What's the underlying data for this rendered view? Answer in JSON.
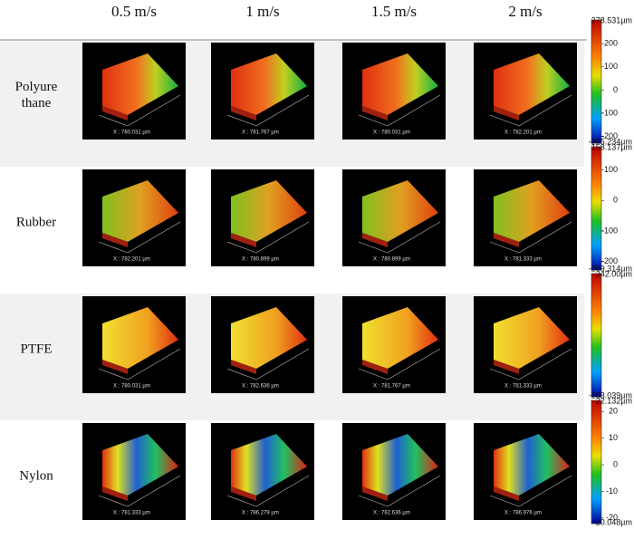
{
  "header": {
    "columns": [
      "0.5 m/s",
      "1 m/s",
      "1.5 m/s",
      "2 m/s"
    ]
  },
  "rows": [
    {
      "label": "Polyure thane",
      "images": [
        "X : 780.031 µm",
        "X : 781.767 µm",
        "X : 780.031 µm",
        "X : 782.201 µm"
      ],
      "colorbar": {
        "max": "278.531µm",
        "ticks": [
          200,
          100,
          0,
          -100,
          -200
        ],
        "min": "-205.234µm"
      }
    },
    {
      "label": "Rubber",
      "images": [
        "X : 782.201 µm",
        "X : 780.899 µm",
        "X : 780.899 µm",
        "X : 781.333 µm"
      ],
      "colorbar": {
        "max": "158.137µm",
        "ticks": [
          100,
          0,
          -100,
          -200
        ],
        "min": "-209.314µm"
      }
    },
    {
      "label": "PTFE",
      "images": [
        "X : 780.031 µm",
        "X : 782.636 µm",
        "X : 781.767 µm",
        "X : 781.333 µm"
      ],
      "colorbar": {
        "max": "242.00µm",
        "min": "-283.039µm"
      }
    },
    {
      "label": "Nylon",
      "images": [
        "X : 781.333 µm",
        "X : 786.279 µm",
        "X : 782.636 µm",
        "X : 786.976 µm"
      ],
      "colorbar": {
        "max": "22.132µm",
        "ticks": [
          20,
          10,
          0,
          -10,
          -20
        ],
        "min": "-20.048µm"
      }
    }
  ]
}
